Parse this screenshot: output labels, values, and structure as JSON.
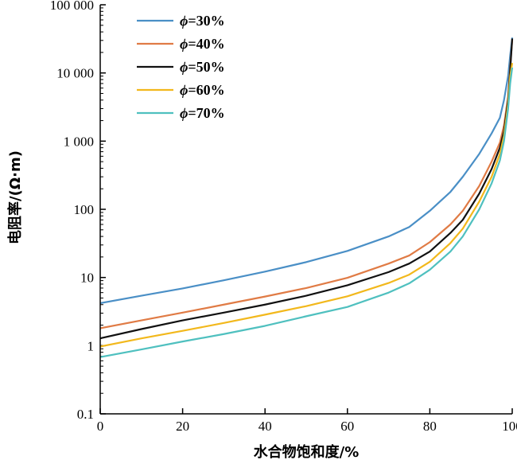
{
  "chart_data": {
    "type": "line",
    "xlabel": "水合物饱和度/%",
    "ylabel": "电阻率/(Ω·m)",
    "xlim": [
      0,
      100
    ],
    "ylim": [
      0.1,
      100000
    ],
    "yscale": "log",
    "x_ticks": [
      "0",
      "20",
      "40",
      "60",
      "80",
      "100"
    ],
    "y_ticks": [
      "0.1",
      "1",
      "10",
      "100",
      "1 000",
      "10 000",
      "100 000"
    ],
    "grid": false,
    "legend_position": "top-left",
    "series": [
      {
        "name": "ϕ=30%",
        "color": "#4a8fc6",
        "points": [
          [
            0,
            4.2
          ],
          [
            10,
            5.4
          ],
          [
            20,
            6.9
          ],
          [
            30,
            9.1
          ],
          [
            40,
            12.2
          ],
          [
            50,
            16.8
          ],
          [
            60,
            24.5
          ],
          [
            70,
            40
          ],
          [
            75,
            55
          ],
          [
            80,
            95
          ],
          [
            85,
            180
          ],
          [
            88,
            300
          ],
          [
            92,
            650
          ],
          [
            95,
            1300
          ],
          [
            97,
            2200
          ],
          [
            98,
            4000
          ],
          [
            99,
            9000
          ],
          [
            99.5,
            18000
          ],
          [
            100,
            33000
          ]
        ]
      },
      {
        "name": "ϕ=40%",
        "color": "#e07b45",
        "points": [
          [
            0,
            1.8
          ],
          [
            10,
            2.35
          ],
          [
            20,
            3.05
          ],
          [
            30,
            4.0
          ],
          [
            40,
            5.25
          ],
          [
            50,
            7.0
          ],
          [
            60,
            9.9
          ],
          [
            70,
            16
          ],
          [
            75,
            21
          ],
          [
            80,
            33
          ],
          [
            85,
            60
          ],
          [
            88,
            95
          ],
          [
            92,
            220
          ],
          [
            95,
            500
          ],
          [
            97,
            950
          ],
          [
            98,
            1700
          ],
          [
            99,
            4500
          ],
          [
            99.5,
            12000
          ],
          [
            100,
            31000
          ]
        ]
      },
      {
        "name": "ϕ=50%",
        "color": "#111111",
        "points": [
          [
            0,
            1.28
          ],
          [
            10,
            1.75
          ],
          [
            20,
            2.35
          ],
          [
            30,
            3.05
          ],
          [
            40,
            4.0
          ],
          [
            50,
            5.4
          ],
          [
            60,
            7.7
          ],
          [
            70,
            12
          ],
          [
            75,
            16
          ],
          [
            80,
            24
          ],
          [
            85,
            45
          ],
          [
            88,
            70
          ],
          [
            92,
            170
          ],
          [
            95,
            390
          ],
          [
            97,
            800
          ],
          [
            98,
            1400
          ],
          [
            99,
            4000
          ],
          [
            99.5,
            11000
          ],
          [
            100,
            32000
          ]
        ]
      },
      {
        "name": "ϕ=60%",
        "color": "#f2b81c",
        "points": [
          [
            0,
            0.97
          ],
          [
            10,
            1.28
          ],
          [
            20,
            1.65
          ],
          [
            30,
            2.15
          ],
          [
            40,
            2.85
          ],
          [
            50,
            3.8
          ],
          [
            60,
            5.3
          ],
          [
            70,
            8.3
          ],
          [
            75,
            11
          ],
          [
            80,
            17
          ],
          [
            85,
            32
          ],
          [
            88,
            52
          ],
          [
            92,
            130
          ],
          [
            95,
            300
          ],
          [
            97,
            650
          ],
          [
            98,
            1200
          ],
          [
            99,
            3500
          ],
          [
            99.5,
            9000
          ],
          [
            100,
            14000
          ]
        ]
      },
      {
        "name": "ϕ=70%",
        "color": "#4fc0bf",
        "points": [
          [
            0,
            0.68
          ],
          [
            10,
            0.88
          ],
          [
            20,
            1.15
          ],
          [
            30,
            1.48
          ],
          [
            40,
            1.95
          ],
          [
            50,
            2.7
          ],
          [
            60,
            3.7
          ],
          [
            70,
            6.0
          ],
          [
            75,
            8.2
          ],
          [
            80,
            13
          ],
          [
            85,
            24
          ],
          [
            88,
            40
          ],
          [
            92,
            100
          ],
          [
            95,
            240
          ],
          [
            97,
            520
          ],
          [
            98,
            1000
          ],
          [
            99,
            3000
          ],
          [
            99.5,
            7000
          ],
          [
            100,
            12000
          ]
        ]
      }
    ]
  }
}
